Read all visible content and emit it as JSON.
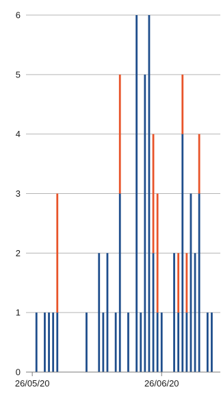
{
  "chart_data": {
    "type": "bar",
    "stacked": true,
    "ylim": [
      0,
      6
    ],
    "yticks": [
      "0",
      "1",
      "2",
      "3",
      "4",
      "5",
      "6"
    ],
    "grid": true,
    "legend": "none",
    "x_start_date": "2020-05-25",
    "x_end_date": "2020-07-08",
    "xtick_labels": [
      {
        "date": "2020-05-26",
        "label": "26/05/20"
      },
      {
        "date": "2020-06-26",
        "label": "26/06/20"
      }
    ],
    "colors": {
      "blue": "#1f4e8c",
      "orange": "#e8542a",
      "grid": "#b5b5b5"
    },
    "series": [
      {
        "color": "blue",
        "points": [
          {
            "date": "2020-05-27",
            "value": 1
          },
          {
            "date": "2020-05-29",
            "value": 1
          },
          {
            "date": "2020-05-30",
            "value": 1
          },
          {
            "date": "2020-05-31",
            "value": 1
          },
          {
            "date": "2020-06-01",
            "value": 1
          },
          {
            "date": "2020-06-08",
            "value": 1
          },
          {
            "date": "2020-06-11",
            "value": 2
          },
          {
            "date": "2020-06-12",
            "value": 1
          },
          {
            "date": "2020-06-13",
            "value": 2
          },
          {
            "date": "2020-06-15",
            "value": 1
          },
          {
            "date": "2020-06-16",
            "value": 3
          },
          {
            "date": "2020-06-18",
            "value": 1
          },
          {
            "date": "2020-06-20",
            "value": 6
          },
          {
            "date": "2020-06-21",
            "value": 1
          },
          {
            "date": "2020-06-22",
            "value": 5
          },
          {
            "date": "2020-06-23",
            "value": 6
          },
          {
            "date": "2020-06-24",
            "value": 2
          },
          {
            "date": "2020-06-25",
            "value": 1
          },
          {
            "date": "2020-06-26",
            "value": 1
          },
          {
            "date": "2020-06-29",
            "value": 2
          },
          {
            "date": "2020-06-30",
            "value": 1
          },
          {
            "date": "2020-07-01",
            "value": 4
          },
          {
            "date": "2020-07-02",
            "value": 1
          },
          {
            "date": "2020-07-03",
            "value": 3
          },
          {
            "date": "2020-07-04",
            "value": 2
          },
          {
            "date": "2020-07-05",
            "value": 3
          },
          {
            "date": "2020-07-07",
            "value": 1
          },
          {
            "date": "2020-07-08",
            "value": 1
          }
        ]
      },
      {
        "color": "orange",
        "points": [
          {
            "date": "2020-06-01",
            "value": 2
          },
          {
            "date": "2020-06-16",
            "value": 2
          },
          {
            "date": "2020-06-24",
            "value": 2
          },
          {
            "date": "2020-06-25",
            "value": 2
          },
          {
            "date": "2020-06-30",
            "value": 1
          },
          {
            "date": "2020-07-01",
            "value": 1
          },
          {
            "date": "2020-07-02",
            "value": 1
          },
          {
            "date": "2020-07-05",
            "value": 1
          }
        ]
      }
    ]
  }
}
